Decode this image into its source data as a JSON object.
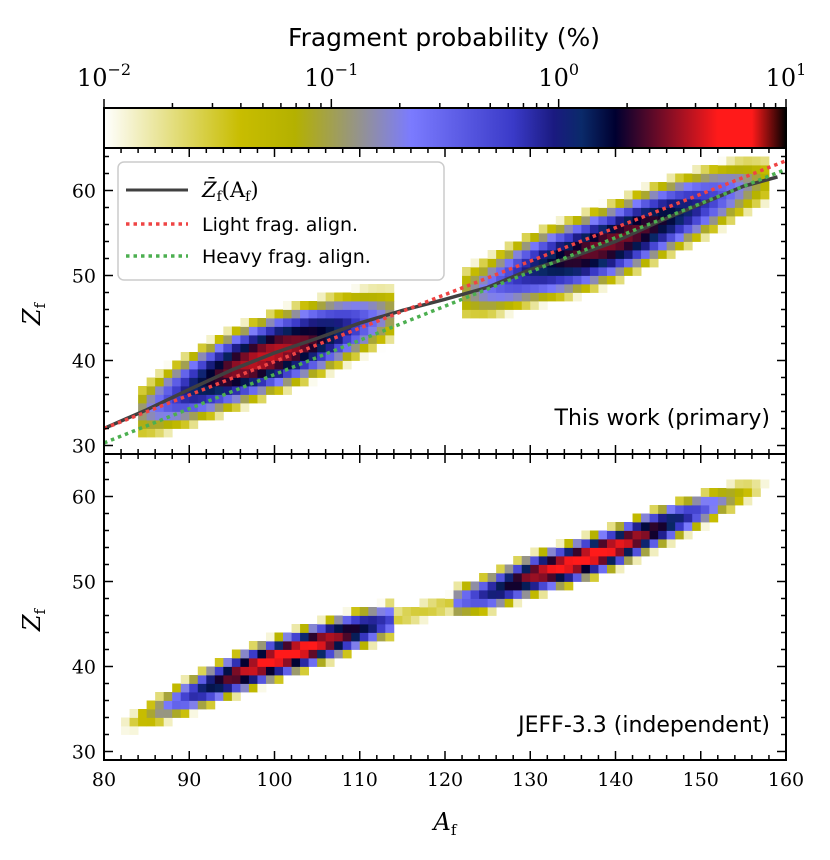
{
  "chart_data": {
    "type": "heatmap",
    "colorbar": {
      "title": "Fragment probability (%)",
      "scale": "log",
      "range": [
        0.01,
        10
      ],
      "tick_labels": [
        {
          "base": "10",
          "exp": "−2",
          "value": 0.01
        },
        {
          "base": "10",
          "exp": "−1",
          "value": 0.1
        },
        {
          "base": "10",
          "exp": "0",
          "value": 1
        },
        {
          "base": "10",
          "exp": "1",
          "value": 10
        }
      ],
      "colors": [
        "#ffffff",
        "#c8bd00",
        "#7b7bff",
        "#2020b0",
        "#000040",
        "#ff1a1a",
        "#000000"
      ]
    },
    "xlabel": "A",
    "xlabel_sub": "f",
    "ylabel": "Z",
    "ylabel_sub": "f",
    "xlim": [
      80,
      160
    ],
    "x_ticks": [
      80,
      90,
      100,
      110,
      120,
      130,
      140,
      150,
      160
    ],
    "panels": [
      {
        "name": "top",
        "annotation": "This work (primary)",
        "ylim": [
          29,
          65
        ],
        "y_ticks": [
          30,
          40,
          50,
          60
        ],
        "light_peak": {
          "A_range": [
            84,
            113
          ],
          "peak_A": 98.5,
          "width": 5.5,
          "peak_value": 4.0
        },
        "heavy_peak": {
          "A_range": [
            122,
            157
          ],
          "peak_A": 139,
          "width": 6.5,
          "peak_value": 3.0
        },
        "legend": [
          {
            "label_main": "Z̄",
            "label_sub": "f",
            "label_tail": "(A",
            "label_tail_sub": "f",
            "label_close": ")",
            "style": "solid",
            "color": "#404040"
          },
          {
            "label": "Light frag. align.",
            "style": "dotted",
            "color": "#ef4444"
          },
          {
            "label": "Heavy frag. align.",
            "style": "dotted",
            "color": "#4caf50"
          }
        ],
        "mean_Z_line": {
          "A": [
            80,
            85,
            90,
            95,
            100,
            105,
            110,
            115,
            120,
            125,
            130,
            135,
            140,
            145,
            150,
            155,
            159
          ],
          "Z": [
            32.0,
            34.2,
            36.6,
            38.9,
            40.9,
            42.6,
            44.4,
            45.9,
            47.2,
            48.6,
            50.7,
            52.2,
            54.0,
            56.3,
            58.4,
            60.5,
            61.6
          ]
        },
        "light_align_line": {
          "A": [
            80,
            160
          ],
          "Z": [
            32.0,
            63.5
          ]
        },
        "heavy_align_line": {
          "A": [
            80,
            160
          ],
          "Z": [
            30.3,
            62.5
          ]
        }
      },
      {
        "name": "bottom",
        "annotation": "JEFF-3.3 (independent)",
        "ylim": [
          29,
          65
        ],
        "y_ticks": [
          30,
          40,
          50,
          60
        ],
        "light_peak": {
          "A_range": [
            80,
            113
          ],
          "peak_A": 101,
          "width": 5.5,
          "peak_value": 6.0
        },
        "heavy_peak": {
          "A_range": [
            121,
            160
          ],
          "peak_A": 136,
          "width": 6.0,
          "peak_value": 6.0
        }
      }
    ]
  }
}
